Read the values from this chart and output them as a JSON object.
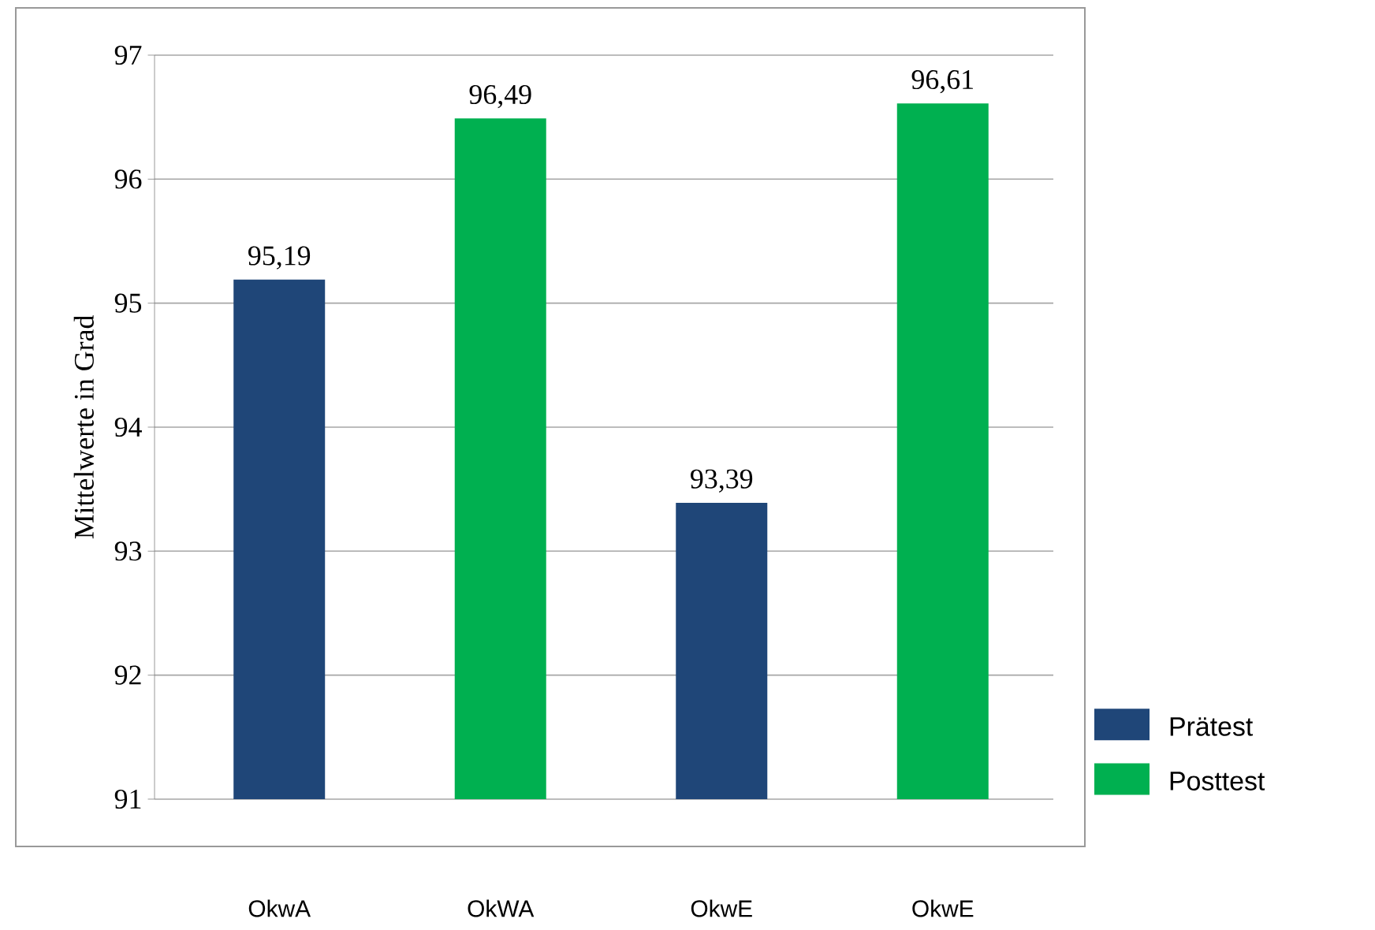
{
  "chart_data": {
    "type": "bar",
    "ylabel": "Mittelwerte in Grad",
    "categories": [
      "OkwA",
      "OkWA",
      "OkwE",
      "OkwE"
    ],
    "series": [
      {
        "name": "Prätest",
        "color": "#1f4678",
        "values": [
          95.19,
          null,
          93.39,
          null
        ],
        "value_labels": [
          "95,19",
          null,
          "93,39",
          null
        ]
      },
      {
        "name": "Posttest",
        "color": "#00b050",
        "values": [
          null,
          96.49,
          null,
          96.61
        ],
        "value_labels": [
          null,
          "96,49",
          null,
          "96,61"
        ]
      }
    ],
    "ylim": [
      91,
      97
    ],
    "yticks": [
      91,
      92,
      93,
      94,
      95,
      96,
      97
    ],
    "grid": "y",
    "legend": "bottom right"
  }
}
